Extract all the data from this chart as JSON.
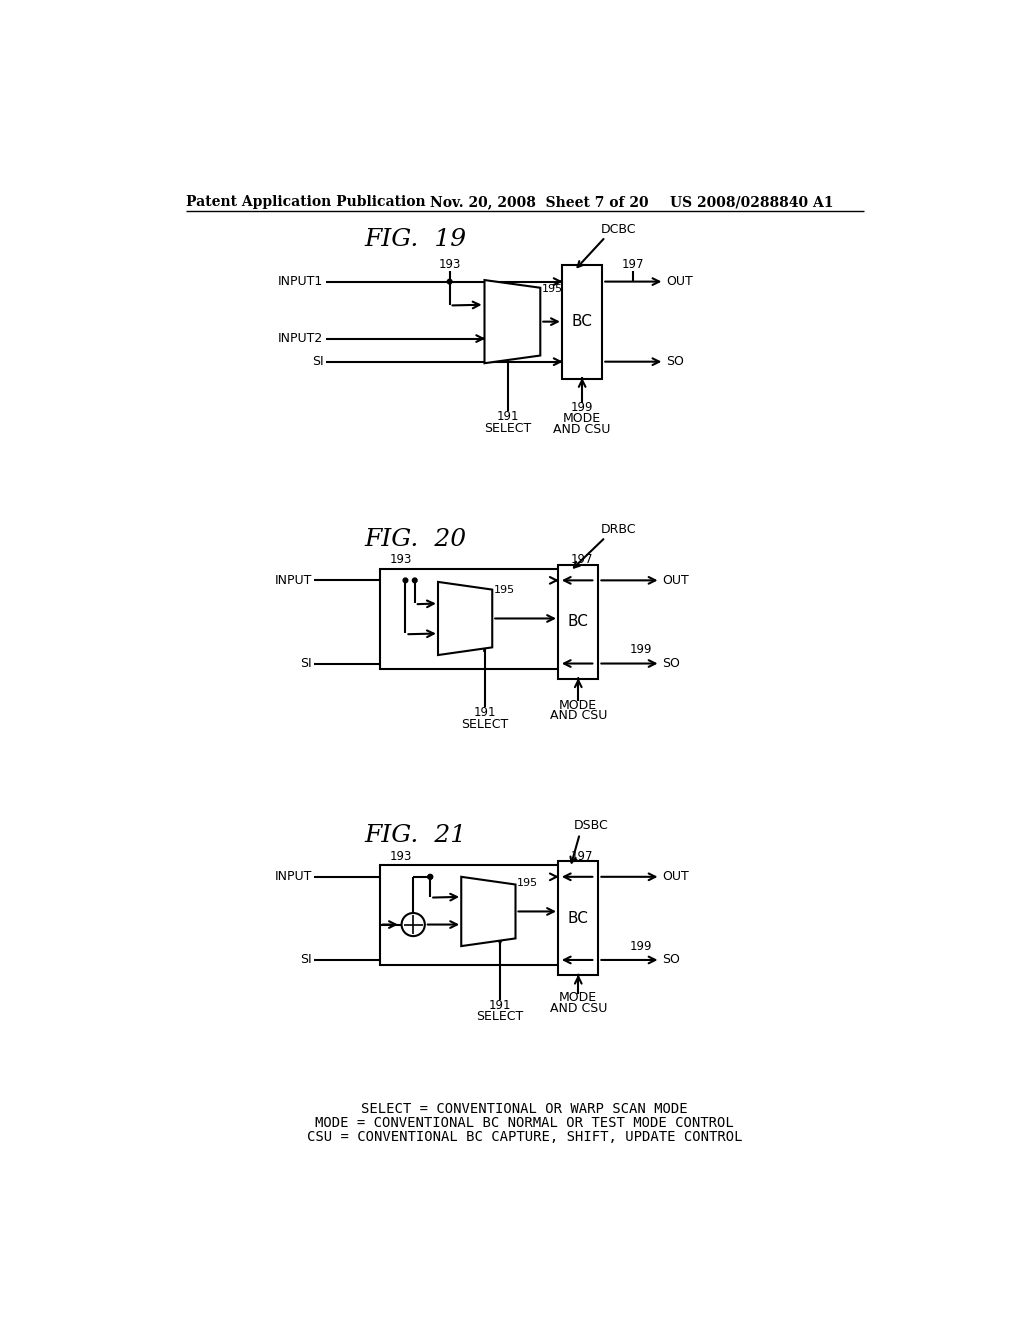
{
  "bg_color": "#ffffff",
  "header_left": "Patent Application Publication",
  "header_mid": "Nov. 20, 2008  Sheet 7 of 20",
  "header_right": "US 2008/0288840 A1",
  "footer_lines": [
    "SELECT = CONVENTIONAL OR WARP SCAN MODE",
    "MODE = CONVENTIONAL BC NORMAL OR TEST MODE CONTROL",
    "CSU = CONVENTIONAL BC CAPTURE, SHIFT, UPDATE CONTROL"
  ]
}
